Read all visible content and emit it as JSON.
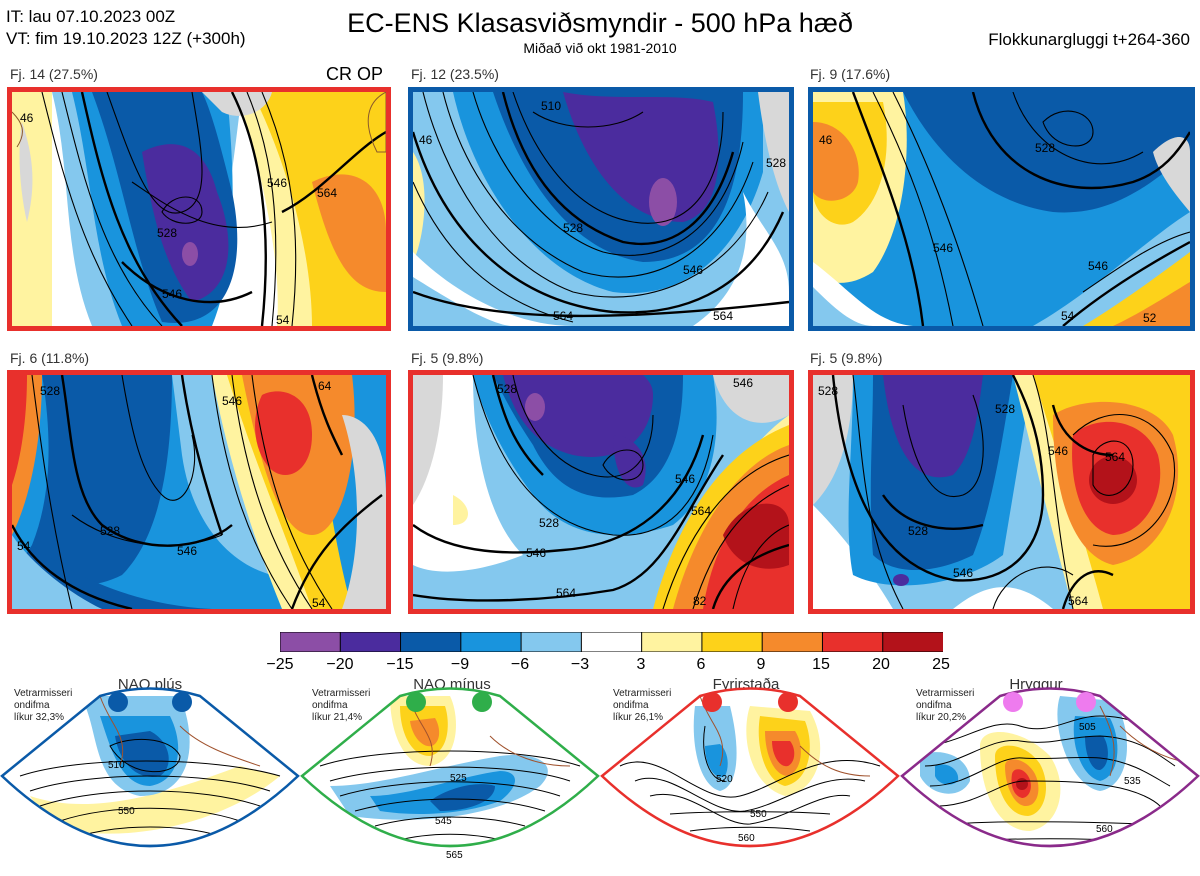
{
  "header": {
    "it_line": "IT: lau 07.10.2023 00Z",
    "vt_line": "VT: fim 19.10.2023 12Z  (+300h)",
    "title": "EC-ENS Klasasviðsmyndir - 500 hPa hæð",
    "subtitle": "Miðað við okt 1981-2010",
    "window": "Flokkunargluggi t+264-360"
  },
  "colors": {
    "frame_red": "#e8302c",
    "frame_blue": "#0a5aa8",
    "frame_green": "#2fae4a",
    "frame_purple": "#8a2a8a"
  },
  "panels": [
    {
      "label": "Fj. 14 (27.5%)",
      "tag": "CR OP",
      "frame": "red",
      "contours": [
        "46",
        "528",
        "546",
        "564",
        "54"
      ]
    },
    {
      "label": "Fj. 12 (23.5%)",
      "tag": "",
      "frame": "blue",
      "contours": [
        "510",
        "46",
        "528",
        "546",
        "564"
      ]
    },
    {
      "label": "Fj. 9 (17.6%)",
      "tag": "",
      "frame": "blue",
      "contours": [
        "46",
        "528",
        "546",
        "54",
        "52"
      ]
    },
    {
      "label": "Fj. 6 (11.8%)",
      "tag": "",
      "frame": "red",
      "contours": [
        "528",
        "546",
        "54",
        "64"
      ]
    },
    {
      "label": "Fj. 5 (9.8%)",
      "tag": "",
      "frame": "red",
      "contours": [
        "528",
        "546",
        "564",
        "546",
        "82"
      ]
    },
    {
      "label": "Fj. 5 (9.8%)",
      "tag": "",
      "frame": "red",
      "contours": [
        "528",
        "546",
        "564",
        "564"
      ]
    }
  ],
  "colorbar": {
    "labels": [
      "−25",
      "−20",
      "−15",
      "−9",
      "−6",
      "−3",
      "3",
      "6",
      "9",
      "15",
      "20",
      "25"
    ],
    "colors": [
      "#8c4ea6",
      "#4b2c9e",
      "#0a5aa8",
      "#1994dd",
      "#84c8ee",
      "#ffffff",
      "#fff3a0",
      "#fdd21a",
      "#f58a2c",
      "#e8302c",
      "#b3121a"
    ]
  },
  "regimes": [
    {
      "title": "NAO plús",
      "note": [
        "Vetrarmisseri",
        "ondifma",
        "líkur 32,3%"
      ],
      "contours": [
        "510",
        "550"
      ],
      "dot": "#0a5aa8",
      "frame": "#0a5aa8"
    },
    {
      "title": "NAO mínus",
      "note": [
        "Vetrarmisseri",
        "ondifma",
        "líkur 21,4%"
      ],
      "contours": [
        "525",
        "545",
        "565"
      ],
      "dot": "#2fae4a",
      "frame": "#2fae4a"
    },
    {
      "title": "Fyrirstaða",
      "note": [
        "Vetrarmisseri",
        "ondifma",
        "líkur 26,1%"
      ],
      "contours": [
        "520",
        "550",
        "560"
      ],
      "dot": "#e8302c",
      "frame": "#e8302c"
    },
    {
      "title": "Hryggur",
      "note": [
        "Vetrarmisseri",
        "ondifma",
        "líkur 20,2%"
      ],
      "contours": [
        "505",
        "535",
        "560"
      ],
      "dot": "#ee7bee",
      "frame": "#8a2a8a"
    }
  ]
}
